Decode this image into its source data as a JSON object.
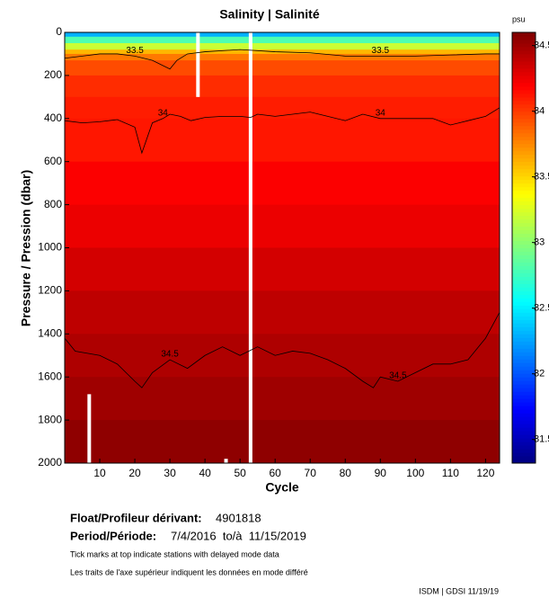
{
  "chart_data": {
    "type": "section",
    "title": "Salinity | Salinité",
    "x_label": "Cycle",
    "y_label": "Pressure / Pression (dbar)",
    "xlim": [
      0,
      124
    ],
    "xticks": [
      10,
      20,
      30,
      40,
      50,
      60,
      70,
      80,
      90,
      100,
      110,
      120
    ],
    "ylim": [
      2000,
      0
    ],
    "yticks": [
      0,
      200,
      400,
      600,
      800,
      1000,
      1200,
      1400,
      1600,
      1800,
      2000
    ],
    "colorbar": {
      "label": "psu",
      "clim": [
        31.32,
        34.6
      ],
      "ticks": [
        31.5,
        32,
        32.5,
        33,
        33.5,
        34,
        34.5
      ]
    },
    "profile": {
      "pressure": [
        0,
        20,
        50,
        80,
        100,
        130,
        200,
        300,
        400,
        600,
        800,
        1000,
        1200,
        1400,
        1600,
        1800,
        2000
      ],
      "salinity": [
        32.3,
        32.8,
        33.2,
        33.6,
        33.8,
        33.95,
        34.05,
        34.1,
        34.12,
        34.2,
        34.25,
        34.33,
        34.4,
        34.45,
        34.5,
        34.55,
        34.58
      ]
    },
    "contours": [
      {
        "level": 33.5,
        "x": [
          0,
          5,
          10,
          15,
          20,
          25,
          30,
          32,
          35,
          40,
          50,
          60,
          70,
          80,
          90,
          100,
          110,
          120,
          124
        ],
        "values": [
          120,
          110,
          100,
          100,
          110,
          130,
          170,
          130,
          100,
          90,
          80,
          90,
          95,
          110,
          110,
          110,
          105,
          100,
          100
        ]
      },
      {
        "level": 34,
        "x": [
          0,
          5,
          10,
          15,
          20,
          22,
          25,
          28,
          30,
          33,
          36,
          40,
          45,
          50,
          53,
          55,
          60,
          65,
          70,
          75,
          80,
          85,
          90,
          95,
          100,
          105,
          110,
          115,
          120,
          124
        ],
        "values": [
          410,
          420,
          415,
          405,
          440,
          560,
          420,
          400,
          380,
          390,
          410,
          395,
          390,
          390,
          395,
          380,
          390,
          380,
          370,
          390,
          410,
          380,
          400,
          400,
          400,
          400,
          430,
          410,
          390,
          350
        ]
      },
      {
        "level": 34.5,
        "x": [
          0,
          3,
          10,
          15,
          20,
          22,
          25,
          30,
          35,
          40,
          45,
          50,
          55,
          60,
          65,
          70,
          75,
          80,
          85,
          88,
          90,
          95,
          100,
          105,
          110,
          115,
          120,
          124
        ],
        "values": [
          1420,
          1480,
          1500,
          1540,
          1620,
          1650,
          1580,
          1520,
          1560,
          1500,
          1460,
          1500,
          1460,
          1500,
          1480,
          1490,
          1520,
          1560,
          1620,
          1650,
          1600,
          1620,
          1580,
          1540,
          1540,
          1520,
          1420,
          1300
        ]
      }
    ],
    "gaps": [
      {
        "cycle": 38,
        "from": 0,
        "to": 300
      },
      {
        "cycle": 53,
        "from": 0,
        "to": 2000
      },
      {
        "cycle": 7,
        "from": 1680,
        "to": 2000
      },
      {
        "cycle": 46,
        "from": 1980,
        "to": 2000
      }
    ]
  },
  "footer": {
    "float_label": "Float/Profileur dérivant:",
    "float_id": "4901818",
    "period_label": "Period/Période:",
    "period": "7/4/2016  to/à  11/15/2019",
    "note_en": "Tick marks at top indicate stations with delayed mode data",
    "note_fr": "Les traits de l'axe supérieur indiquent les données en mode différé",
    "credit": "ISDM | GDSI 11/19/19"
  }
}
